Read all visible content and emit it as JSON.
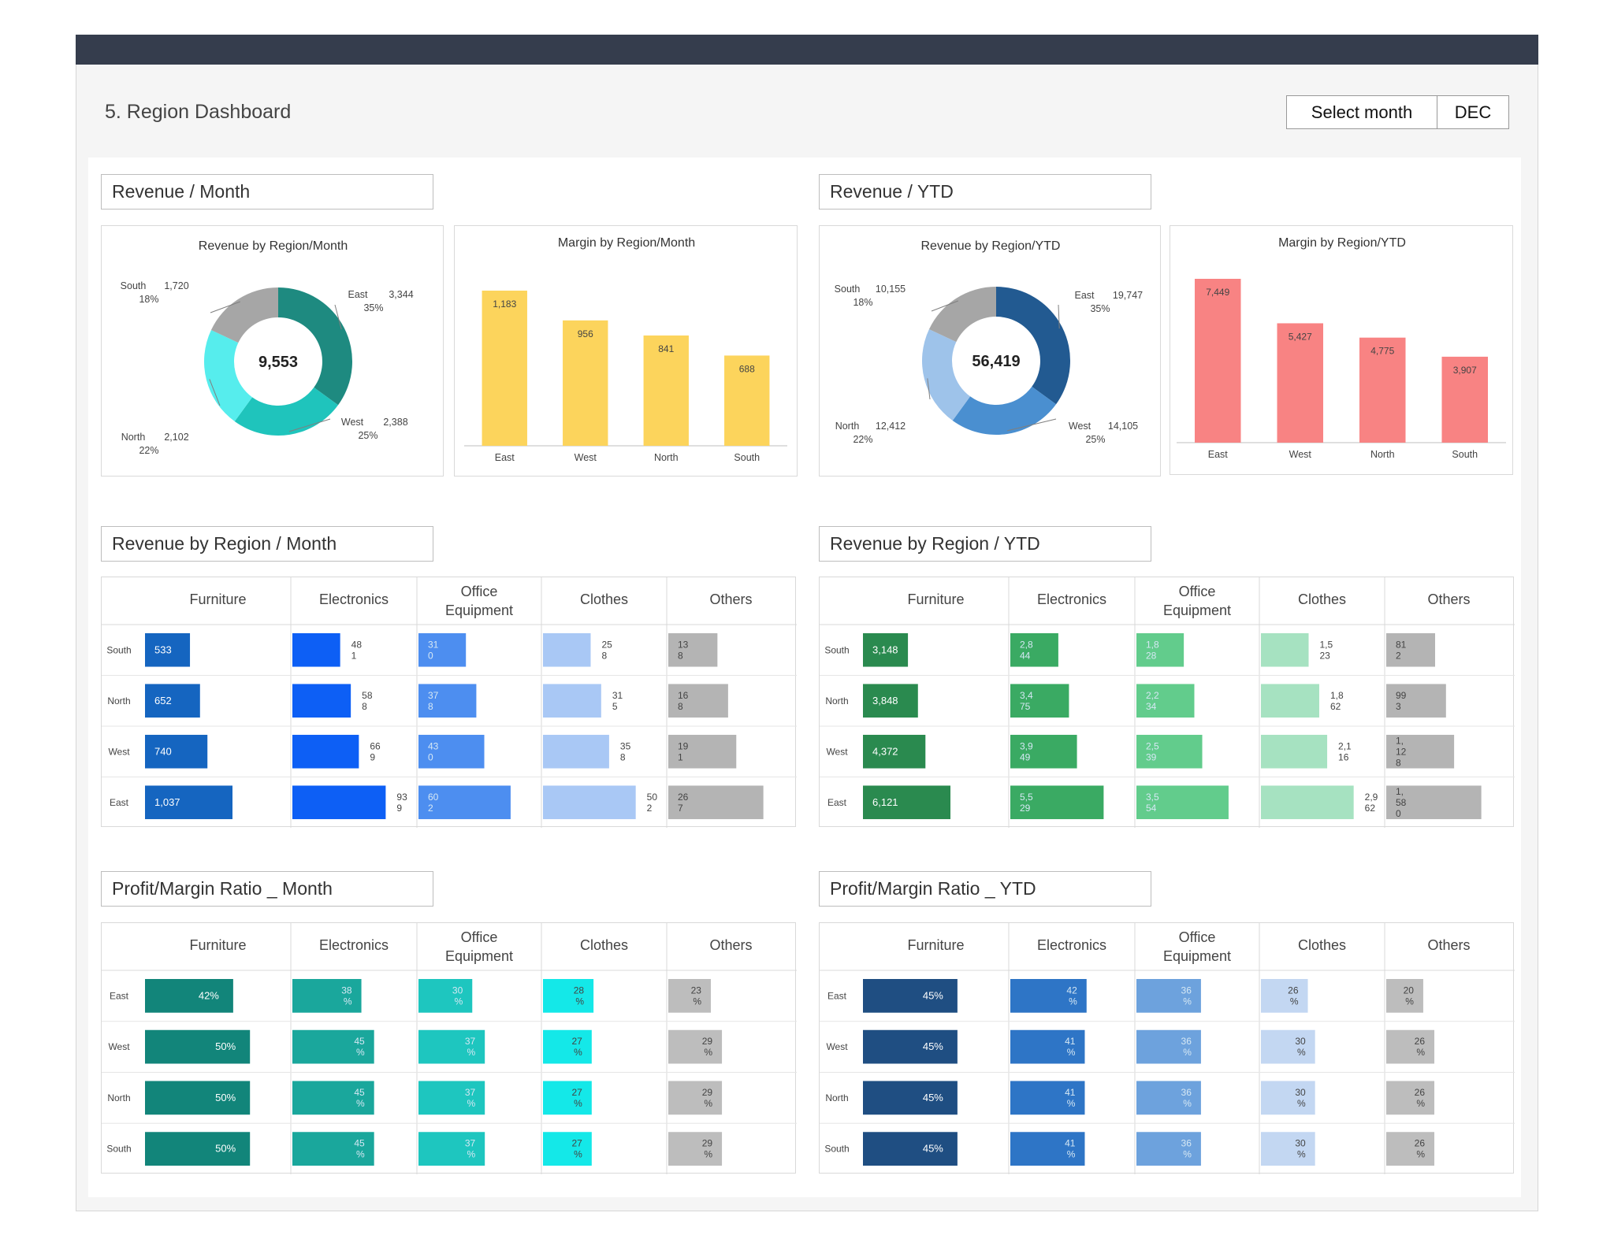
{
  "page": {
    "title": "5. Region Dashboard",
    "select_month_label": "Select month",
    "selected_month": "DEC"
  },
  "sections": {
    "rev_month": "Revenue / Month",
    "rev_ytd": "Revenue / YTD",
    "rev_region_month": "Revenue by Region / Month",
    "rev_region_ytd": "Revenue by Region / YTD",
    "pm_month": "Profit/Margin Ratio _ Month",
    "pm_ytd": "Profit/Margin Ratio _ YTD"
  },
  "colors": {
    "yellow": "#fcd45c",
    "salmon": "#f88383",
    "teal_dark": "#1e8a80",
    "teal_mid": "#1fc4bc",
    "teal_light": "#56eded",
    "navy": "#225a91",
    "blue_mid": "#5b9bd5",
    "blue_light": "#a9c6e8",
    "grey": "#b4b4b4"
  },
  "chart_data": [
    {
      "type": "pie",
      "id": "rev_month_donut",
      "title": "Revenue by Region/Month",
      "center_label": "9,553",
      "slices": [
        {
          "label": "East",
          "value": 3344,
          "value_text": "3,344",
          "pct": "35%",
          "color": "#1e8a80"
        },
        {
          "label": "West",
          "value": 2388,
          "value_text": "2,388",
          "pct": "25%",
          "color": "#1fc4bc"
        },
        {
          "label": "North",
          "value": 2102,
          "value_text": "2,102",
          "pct": "22%",
          "color": "#56eded"
        },
        {
          "label": "South",
          "value": 1720,
          "value_text": "1,720",
          "pct": "18%",
          "color": "#a6a6a6"
        }
      ]
    },
    {
      "type": "bar",
      "id": "margin_month",
      "title": "Margin by Region/Month",
      "categories": [
        "East",
        "West",
        "North",
        "South"
      ],
      "values": [
        1183,
        956,
        841,
        688
      ],
      "value_labels": [
        "1,183",
        "956",
        "841",
        "688"
      ],
      "color": "#fcd45c",
      "ylim": [
        0,
        1183
      ]
    },
    {
      "type": "pie",
      "id": "rev_ytd_donut",
      "title": "Revenue by Region/YTD",
      "center_label": "56,419",
      "slices": [
        {
          "label": "East",
          "value": 19747,
          "value_text": "19,747",
          "pct": "35%",
          "color": "#225a91"
        },
        {
          "label": "West",
          "value": 14105,
          "value_text": "14,105",
          "pct": "25%",
          "color": "#4a8fd0"
        },
        {
          "label": "North",
          "value": 12412,
          "value_text": "12,412",
          "pct": "22%",
          "color": "#9ec3ea"
        },
        {
          "label": "South",
          "value": 10155,
          "value_text": "10,155",
          "pct": "18%",
          "color": "#a6a6a6"
        }
      ]
    },
    {
      "type": "bar",
      "id": "margin_ytd",
      "title": "Margin by Region/YTD",
      "categories": [
        "East",
        "West",
        "North",
        "South"
      ],
      "values": [
        7449,
        5427,
        4775,
        3907
      ],
      "value_labels": [
        "7,449",
        "5,427",
        "4,775",
        "3,907"
      ],
      "color": "#f88383",
      "ylim": [
        0,
        7449
      ]
    },
    {
      "type": "table",
      "id": "rev_region_month",
      "columns": [
        "Furniture",
        "Electronics",
        "Office\nEquipment",
        "Clothes",
        "Others"
      ],
      "rows": [
        "South",
        "North",
        "West",
        "East"
      ],
      "values": [
        [
          533,
          481,
          310,
          258,
          138
        ],
        [
          652,
          588,
          378,
          315,
          168
        ],
        [
          740,
          669,
          430,
          358,
          191
        ],
        [
          1037,
          939,
          602,
          502,
          267
        ]
      ],
      "labels": [
        [
          "533",
          "48\n1",
          "31\n0",
          "25\n8",
          "13\n8"
        ],
        [
          "652",
          "58\n8",
          "37\n8",
          "31\n5",
          "16\n8"
        ],
        [
          "740",
          "66\n9",
          "43\n0",
          "35\n8",
          "19\n1"
        ],
        [
          "1,037",
          "93\n9",
          "60\n2",
          "50\n2",
          "26\n7"
        ]
      ],
      "colors": [
        "#1565c0",
        "#0d5ff5",
        "#4d8ef0",
        "#a9c8f5",
        "#b4b4b4"
      ],
      "label_inside": [
        true,
        false,
        true,
        false,
        true
      ]
    },
    {
      "type": "table",
      "id": "rev_region_ytd",
      "columns": [
        "Furniture",
        "Electronics",
        "Office\nEquipment",
        "Clothes",
        "Others"
      ],
      "rows": [
        "South",
        "North",
        "West",
        "East"
      ],
      "values": [
        [
          3148,
          2844,
          1828,
          1523,
          812
        ],
        [
          3848,
          3475,
          2234,
          1862,
          993
        ],
        [
          4372,
          3949,
          2539,
          2116,
          1128
        ],
        [
          6121,
          5529,
          3554,
          2962,
          1580
        ]
      ],
      "labels": [
        [
          "3,148",
          "2,8\n44",
          "1,8\n28",
          "1,5\n23",
          "81\n2"
        ],
        [
          "3,848",
          "3,4\n75",
          "2,2\n34",
          "1,8\n62",
          "99\n3"
        ],
        [
          "4,372",
          "3,9\n49",
          "2,5\n39",
          "2,1\n16",
          "1,\n12\n8"
        ],
        [
          "6,121",
          "5,5\n29",
          "3,5\n54",
          "2,9\n62",
          "1,\n58\n0"
        ]
      ],
      "colors": [
        "#2a8a4f",
        "#3aaa63",
        "#62cc8c",
        "#a6e2c1",
        "#b4b4b4"
      ],
      "label_inside": [
        true,
        true,
        true,
        false,
        true
      ]
    },
    {
      "type": "table",
      "id": "pm_month",
      "columns": [
        "Furniture",
        "Electronics",
        "Office\nEquipment",
        "Clothes",
        "Others"
      ],
      "rows": [
        "East",
        "West",
        "North",
        "South"
      ],
      "values": [
        [
          42,
          38,
          30,
          28,
          23
        ],
        [
          50,
          45,
          37,
          27,
          29
        ],
        [
          50,
          45,
          37,
          27,
          29
        ],
        [
          50,
          45,
          37,
          27,
          29
        ]
      ],
      "labels": [
        [
          "42%",
          "38\n%",
          "30\n%",
          "28\n%",
          "23\n%"
        ],
        [
          "50%",
          "45\n%",
          "37\n%",
          "27\n%",
          "29\n%"
        ],
        [
          "50%",
          "45\n%",
          "37\n%",
          "27\n%",
          "29\n%"
        ],
        [
          "50%",
          "45\n%",
          "37\n%",
          "27\n%",
          "29\n%"
        ]
      ],
      "colors": [
        "#12857a",
        "#1aa79c",
        "#1ec6bf",
        "#14e8e8",
        "#bdbdbd"
      ],
      "label_inside": [
        true,
        true,
        true,
        true,
        true
      ]
    },
    {
      "type": "table",
      "id": "pm_ytd",
      "columns": [
        "Furniture",
        "Electronics",
        "Office\nEquipment",
        "Clothes",
        "Others"
      ],
      "rows": [
        "East",
        "West",
        "North",
        "South"
      ],
      "values": [
        [
          45,
          42,
          36,
          26,
          20
        ],
        [
          45,
          41,
          36,
          30,
          26
        ],
        [
          45,
          41,
          36,
          30,
          26
        ],
        [
          45,
          41,
          36,
          30,
          26
        ]
      ],
      "labels": [
        [
          "45%",
          "42\n%",
          "36\n%",
          "26\n%",
          "20\n%"
        ],
        [
          "45%",
          "41\n%",
          "36\n%",
          "30\n%",
          "26\n%"
        ],
        [
          "45%",
          "41\n%",
          "36\n%",
          "30\n%",
          "26\n%"
        ],
        [
          "45%",
          "41\n%",
          "36\n%",
          "30\n%",
          "26\n%"
        ]
      ],
      "colors": [
        "#1f4e82",
        "#2e75c6",
        "#6da2dd",
        "#c3d7f2",
        "#bdbdbd"
      ],
      "label_inside": [
        true,
        true,
        true,
        true,
        true
      ]
    }
  ]
}
